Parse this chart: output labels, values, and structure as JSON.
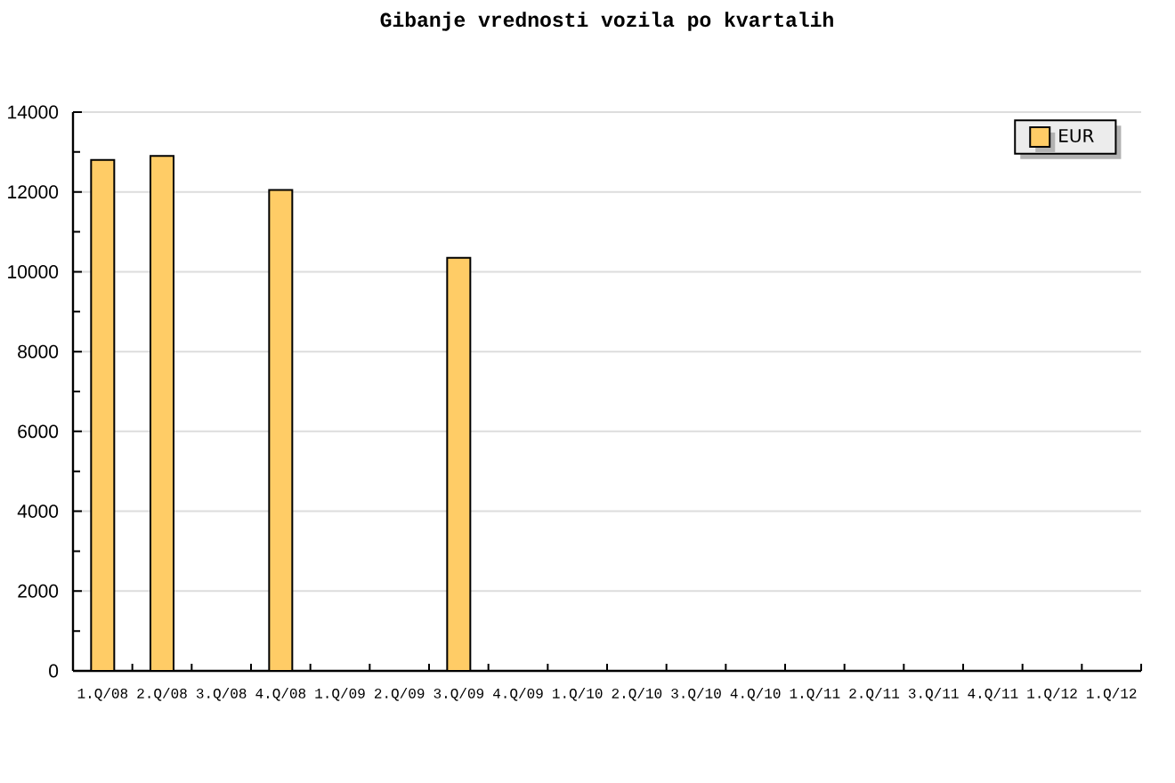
{
  "chart_data": {
    "type": "bar",
    "title": "Gibanje vrednosti vozila po kvartalih",
    "categories": [
      "1.Q/08",
      "2.Q/08",
      "3.Q/08",
      "4.Q/08",
      "1.Q/09",
      "2.Q/09",
      "3.Q/09",
      "4.Q/09",
      "1.Q/10",
      "2.Q/10",
      "3.Q/10",
      "4.Q/10",
      "1.Q/11",
      "2.Q/11",
      "3.Q/11",
      "4.Q/11",
      "1.Q/12",
      "1.Q/12"
    ],
    "series": [
      {
        "name": "EUR",
        "color": "#ffcc66",
        "values": [
          12800,
          12900,
          null,
          12050,
          null,
          null,
          10350,
          null,
          null,
          null,
          null,
          null,
          null,
          null,
          null,
          null,
          null,
          null
        ]
      }
    ],
    "ylim": [
      0,
      14000
    ],
    "yticks": [
      0,
      {
        "value": 1000,
        "label": null
      },
      2000,
      {
        "value": 3000,
        "label": null
      },
      4000,
      {
        "value": 5000,
        "label": null
      },
      6000,
      {
        "value": 7000,
        "label": null
      },
      8000,
      {
        "value": 9000,
        "label": null
      },
      10000,
      {
        "value": 11000,
        "label": null
      },
      12000,
      {
        "value": 13000,
        "label": null
      },
      14000
    ],
    "grid": "y",
    "legend": "top right"
  }
}
